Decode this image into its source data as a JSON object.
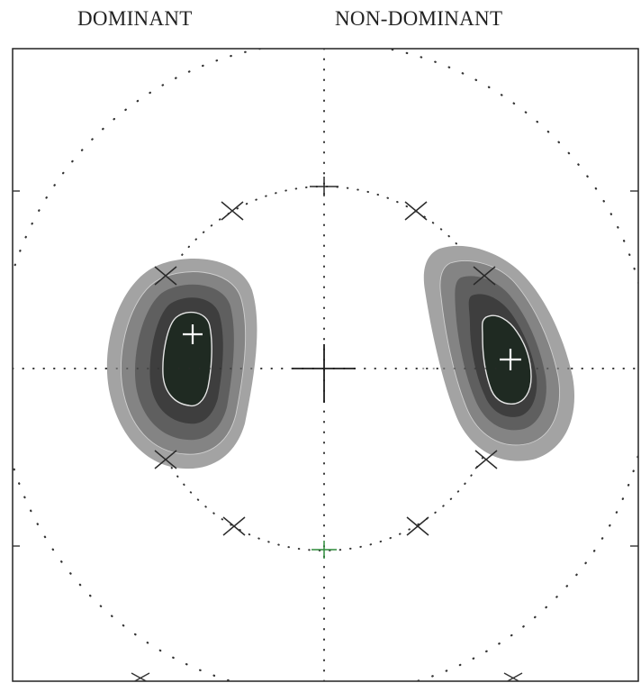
{
  "labels": {
    "left": "DOMINANT",
    "right": "NON-DOMINANT"
  },
  "colors": {
    "ink": "#2a2a2a",
    "frame": "#222222",
    "dots": "#333333",
    "level_1": "#a3a3a3",
    "level_2": "#848484",
    "level_3": "#5f5f5f",
    "level_4": "#3e3e3e",
    "level_5": "#1f2a22",
    "contour_line": "#e6e6e6",
    "bottom_pole_tick": "#2e8b3a",
    "density_center_mark": "#ffffff"
  },
  "icons": {
    "axis_tick_marks": "plus-and-x-marks",
    "density_peak_marker": "white-plus-marker"
  },
  "density_lobes": [
    {
      "side": "dominant",
      "contour_levels": 5
    },
    {
      "side": "non-dominant",
      "contour_levels": 5
    }
  ]
}
